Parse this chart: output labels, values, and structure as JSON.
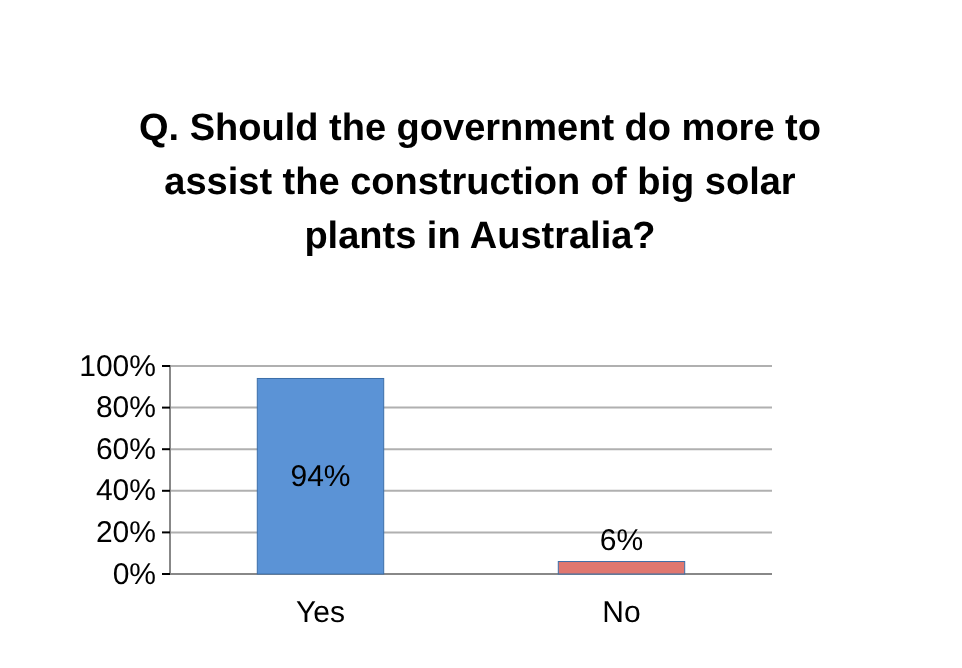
{
  "chart_data": {
    "type": "bar",
    "title": "Q. Should the government do more to assist the construction of big solar plants in Australia?",
    "categories": [
      "Yes",
      "No"
    ],
    "values": [
      94,
      6
    ],
    "colors": [
      "#5b93d6",
      "#e0776f"
    ],
    "value_labels": [
      "94%",
      "6%"
    ],
    "ylim": [
      0,
      100
    ],
    "yticks": [
      {
        "value": 0,
        "label": "0%"
      },
      {
        "value": 20,
        "label": "20%"
      },
      {
        "value": 40,
        "label": "40%"
      },
      {
        "value": 60,
        "label": "60%"
      },
      {
        "value": 80,
        "label": "80%"
      },
      {
        "value": 100,
        "label": "100%"
      }
    ],
    "grid": true
  }
}
